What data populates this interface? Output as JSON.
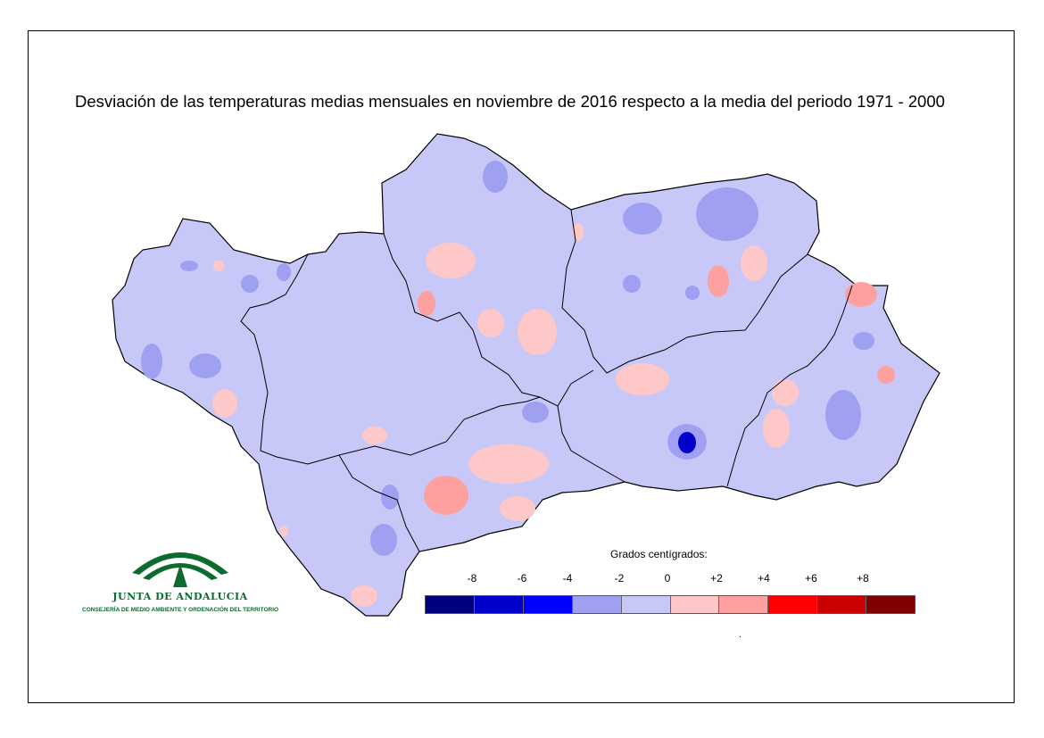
{
  "title": "Desviación de las temperaturas medias mensuales en noviembre de 2016 respecto a la media del periodo 1971 - 2000",
  "legend": {
    "title": "Grados centígrados:",
    "ticks": [
      "-8",
      "-6",
      "-4",
      "-2",
      "0",
      "+2",
      "+4",
      "+6",
      "+8"
    ],
    "classes": [
      {
        "range": "< -8",
        "color": "#00007f"
      },
      {
        "range": "-8 to -6",
        "color": "#0000cc"
      },
      {
        "range": "-6 to -4",
        "color": "#0000ff"
      },
      {
        "range": "-4 to -2",
        "color": "#a0a0f2"
      },
      {
        "range": "-2 to 0",
        "color": "#c8c8f8"
      },
      {
        "range": "0 to +2",
        "color": "#ffc8c8"
      },
      {
        "range": "+2 to +4",
        "color": "#ffa0a0"
      },
      {
        "range": "+4 to +6",
        "color": "#ff0000"
      },
      {
        "range": "+6 to +8",
        "color": "#cc0000"
      },
      {
        "range": "> +8",
        "color": "#7f0000"
      }
    ]
  },
  "logo": {
    "org_name": "JUNTA DE ANDALUCIA",
    "department": "CONSEJERÍA DE MEDIO AMBIENTE Y ORDENACIÓN DEL TERRITORIO",
    "icon": "junta-andalucia-emblem",
    "color": "#0d6b2e"
  },
  "map": {
    "region": "Andalucía",
    "base_color": "#c8c8f8",
    "border_color": "#000000"
  },
  "footer_mark": "."
}
